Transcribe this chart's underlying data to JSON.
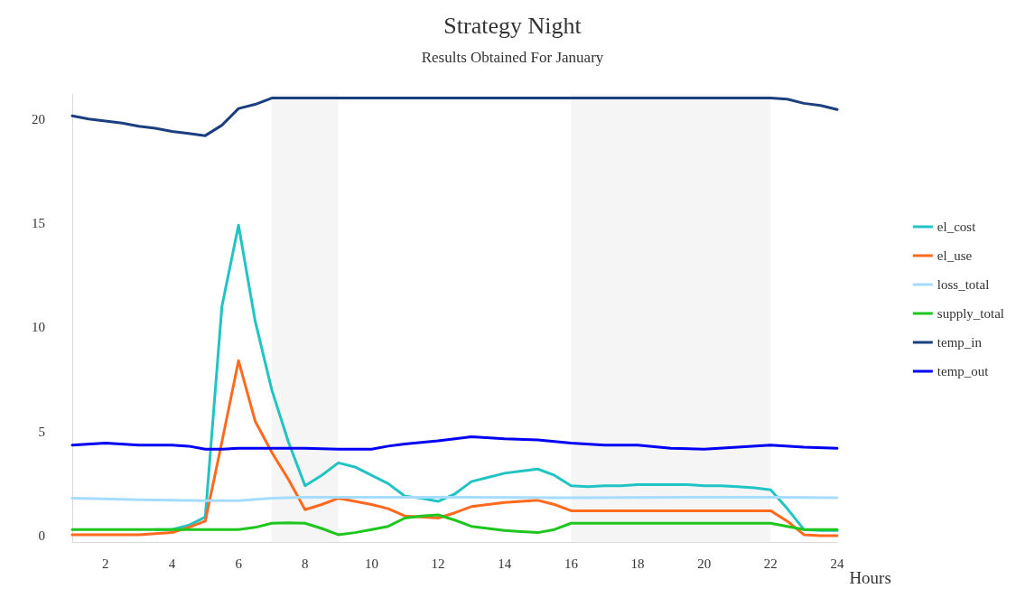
{
  "chart_data": {
    "type": "line",
    "title": "Strategy Night",
    "subtitle": "Results Obtained For January",
    "xlabel": "Hours",
    "x": [
      1,
      1.5,
      2,
      2.5,
      3,
      3.5,
      4,
      4.5,
      5,
      5.5,
      6,
      6.5,
      7,
      7.5,
      8,
      8.5,
      9,
      9.5,
      10,
      10.5,
      11,
      11.5,
      12,
      12.5,
      13,
      13.5,
      14,
      14.5,
      15,
      15.5,
      16,
      16.5,
      17,
      17.5,
      18,
      18.5,
      19,
      19.5,
      20,
      20.5,
      21,
      21.5,
      22,
      22.5,
      23,
      23.5,
      24
    ],
    "series": [
      {
        "name": "el_cost",
        "color": "#22c3c3",
        "values": [
          null,
          null,
          null,
          null,
          null,
          0.3,
          0.3,
          0.5,
          0.9,
          11.0,
          14.9,
          10.3,
          7.0,
          4.5,
          2.4,
          2.9,
          3.5,
          3.3,
          2.9,
          2.5,
          1.9,
          1.8,
          1.65,
          2.0,
          2.6,
          2.8,
          3.0,
          3.1,
          3.2,
          2.9,
          2.4,
          2.35,
          2.4,
          2.4,
          2.45,
          2.45,
          2.45,
          2.45,
          2.4,
          2.4,
          2.35,
          2.3,
          2.2,
          1.3,
          0.3,
          0.25,
          0.25
        ]
      },
      {
        "name": "el_use",
        "color": "#ff6a1f",
        "values": [
          0.05,
          0.05,
          0.05,
          0.05,
          0.05,
          0.1,
          0.15,
          0.4,
          0.7,
          4.5,
          8.4,
          5.5,
          4.0,
          2.7,
          1.25,
          1.5,
          1.8,
          1.65,
          1.5,
          1.3,
          0.95,
          0.9,
          0.85,
          1.1,
          1.4,
          1.5,
          1.6,
          1.65,
          1.7,
          1.5,
          1.2,
          1.2,
          1.2,
          1.2,
          1.2,
          1.2,
          1.2,
          1.2,
          1.2,
          1.2,
          1.2,
          1.2,
          1.2,
          0.7,
          0.05,
          0.0,
          0.0
        ]
      },
      {
        "name": "loss_total",
        "color": "#a6dcff",
        "x": [
          1,
          2,
          3,
          4,
          5,
          6,
          7,
          8,
          9,
          12,
          16,
          20,
          22,
          24
        ],
        "values": [
          1.8,
          1.77,
          1.73,
          1.71,
          1.68,
          1.68,
          1.8,
          1.85,
          1.85,
          1.85,
          1.82,
          1.85,
          1.85,
          1.82
        ]
      },
      {
        "name": "supply_total",
        "color": "#1ec61e",
        "values": [
          0.3,
          0.3,
          0.3,
          0.3,
          0.3,
          0.3,
          0.3,
          0.3,
          0.3,
          0.3,
          0.3,
          0.4,
          0.6,
          0.62,
          0.6,
          0.35,
          0.05,
          0.15,
          0.3,
          0.45,
          0.85,
          0.95,
          1.0,
          0.75,
          0.45,
          0.35,
          0.25,
          0.2,
          0.15,
          0.3,
          0.6,
          0.6,
          0.6,
          0.6,
          0.6,
          0.6,
          0.6,
          0.6,
          0.6,
          0.6,
          0.6,
          0.6,
          0.6,
          0.45,
          0.3,
          0.3,
          0.3
        ]
      },
      {
        "name": "temp_in",
        "color": "#1b3f7f",
        "values": [
          20.15,
          20.0,
          19.9,
          19.8,
          19.65,
          19.55,
          19.4,
          19.3,
          19.2,
          19.7,
          20.5,
          20.7,
          21.0,
          21.0,
          21.0,
          21.0,
          21.0,
          21.0,
          21.0,
          21.0,
          21.0,
          21.0,
          21.0,
          21.0,
          21.0,
          21.0,
          21.0,
          21.0,
          21.0,
          21.0,
          21.0,
          21.0,
          21.0,
          21.0,
          21.0,
          21.0,
          21.0,
          21.0,
          21.0,
          21.0,
          21.0,
          21.0,
          21.0,
          20.95,
          20.75,
          20.65,
          20.45
        ]
      },
      {
        "name": "temp_out",
        "color": "#0000f5",
        "x": [
          1,
          2,
          3,
          4,
          4.5,
          5,
          5.5,
          6,
          7,
          8,
          9,
          10,
          10.5,
          11,
          12,
          13,
          14,
          15,
          16,
          17,
          18,
          19,
          20,
          21,
          22,
          23,
          24
        ],
        "values": [
          4.35,
          4.45,
          4.35,
          4.35,
          4.3,
          4.15,
          4.15,
          4.2,
          4.2,
          4.2,
          4.15,
          4.15,
          4.3,
          4.4,
          4.55,
          4.75,
          4.65,
          4.6,
          4.45,
          4.35,
          4.35,
          4.2,
          4.15,
          4.25,
          4.35,
          4.25,
          4.2
        ]
      }
    ],
    "bands": [
      {
        "axis": "x",
        "from": 7,
        "to": 9,
        "color": "#f5f5f5"
      },
      {
        "axis": "x",
        "from": 16,
        "to": 22,
        "color": "#f5f5f5"
      }
    ],
    "xlim": [
      1,
      24
    ],
    "xticks": [
      2,
      4,
      6,
      8,
      10,
      12,
      14,
      16,
      18,
      20,
      22,
      24
    ],
    "ylim": [
      -0.3,
      21.2
    ],
    "yticks": [
      0,
      5,
      10,
      15,
      20
    ],
    "grid": false,
    "legend": "right",
    "marker": "none",
    "line_style": "solid"
  }
}
